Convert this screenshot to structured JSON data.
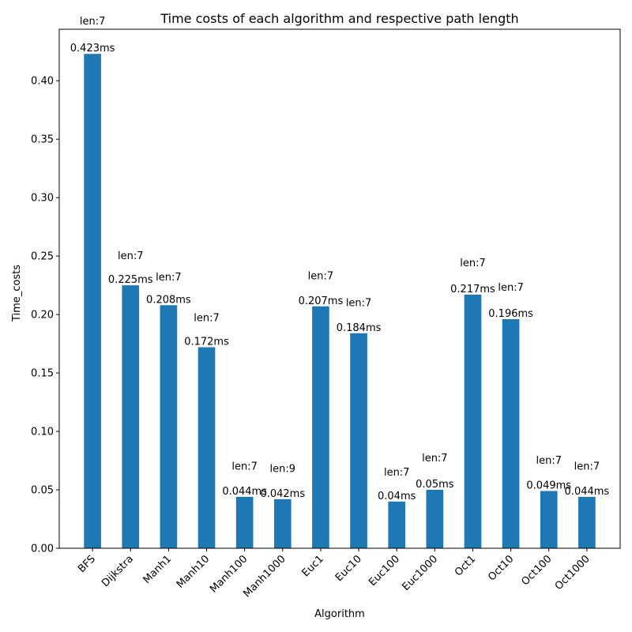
{
  "chart_data": {
    "type": "bar",
    "title": "Time costs of each algorithm and respective path length",
    "xlabel": "Algorithm",
    "ylabel": "Time_costs",
    "categories": [
      "BFS",
      "Dijkstra",
      "Manh1",
      "Manh10",
      "Manh100",
      "Manh1000",
      "Euc1",
      "Euc10",
      "Euc100",
      "Euc1000",
      "Oct1",
      "Oct10",
      "Oct100",
      "Oct1000"
    ],
    "values": [
      0.423,
      0.225,
      0.208,
      0.172,
      0.044,
      0.042,
      0.207,
      0.184,
      0.04,
      0.05,
      0.217,
      0.196,
      0.049,
      0.044
    ],
    "value_labels": [
      "0.423ms",
      "0.225ms",
      "0.208ms",
      "0.172ms",
      "0.044ms",
      "0.042ms",
      "0.207ms",
      "0.184ms",
      "0.04ms",
      "0.05ms",
      "0.217ms",
      "0.196ms",
      "0.049ms",
      "0.044ms"
    ],
    "path_length_labels": [
      "len:7",
      "len:7",
      "len:7",
      "len:7",
      "len:7",
      "len:9",
      "len:7",
      "len:7",
      "len:7",
      "len:7",
      "len:7",
      "len:7",
      "len:7",
      "len:7"
    ],
    "path_length_label_y": [
      0.451,
      0.25,
      0.232,
      0.197,
      0.07,
      0.068,
      0.233,
      0.21,
      0.065,
      0.077,
      0.244,
      0.223,
      0.075,
      0.07
    ],
    "yticks": [
      0.0,
      0.05,
      0.1,
      0.15,
      0.2,
      0.25,
      0.3,
      0.35,
      0.4
    ],
    "ytick_labels": [
      "0.00",
      "0.05",
      "0.10",
      "0.15",
      "0.20",
      "0.25",
      "0.30",
      "0.35",
      "0.40"
    ],
    "ylim": [
      0,
      0.4441
    ],
    "grid": false,
    "bar_color": "#1f77b4"
  }
}
